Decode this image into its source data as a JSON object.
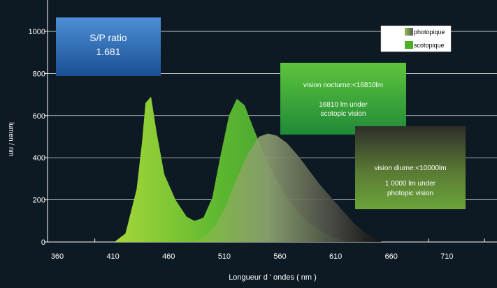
{
  "chart_data": {
    "type": "area",
    "xlabel": "Longueur d ' ondes ( nm )",
    "ylabel": "lumen / nm",
    "xlim": [
      360,
      760
    ],
    "ylim": [
      0,
      1000
    ],
    "x_ticks": [
      360,
      410,
      460,
      510,
      560,
      610,
      660,
      710
    ],
    "y_ticks": [
      0,
      200,
      400,
      600,
      800,
      1000
    ],
    "grid": true,
    "legend_position": "top-right",
    "series": [
      {
        "name": "scotopique",
        "color": "#4caf2a",
        "points": [
          [
            420,
            0
          ],
          [
            430,
            40
          ],
          [
            440,
            250
          ],
          [
            445,
            480
          ],
          [
            448,
            660
          ],
          [
            453,
            690
          ],
          [
            458,
            520
          ],
          [
            465,
            320
          ],
          [
            475,
            200
          ],
          [
            485,
            120
          ],
          [
            492,
            100
          ],
          [
            500,
            115
          ],
          [
            508,
            210
          ],
          [
            515,
            400
          ],
          [
            523,
            600
          ],
          [
            530,
            680
          ],
          [
            537,
            650
          ],
          [
            545,
            540
          ],
          [
            555,
            410
          ],
          [
            565,
            300
          ],
          [
            575,
            210
          ],
          [
            585,
            140
          ],
          [
            595,
            90
          ],
          [
            605,
            55
          ],
          [
            615,
            25
          ],
          [
            625,
            8
          ],
          [
            635,
            0
          ]
        ]
      },
      {
        "name": "photopique",
        "color": "#8a8a7a",
        "points": [
          [
            490,
            0
          ],
          [
            500,
            20
          ],
          [
            510,
            70
          ],
          [
            520,
            170
          ],
          [
            530,
            300
          ],
          [
            540,
            420
          ],
          [
            550,
            500
          ],
          [
            558,
            515
          ],
          [
            566,
            505
          ],
          [
            575,
            470
          ],
          [
            585,
            410
          ],
          [
            595,
            340
          ],
          [
            605,
            270
          ],
          [
            615,
            210
          ],
          [
            625,
            150
          ],
          [
            635,
            90
          ],
          [
            645,
            45
          ],
          [
            652,
            20
          ],
          [
            660,
            0
          ]
        ]
      }
    ],
    "annotations": {
      "sp_ratio": {
        "label": "S/P ratio",
        "value": "1.681"
      },
      "night": {
        "title": "vision nocturne:<16810lm",
        "line1": "16810 lm under",
        "line2": "scotopic vision"
      },
      "day": {
        "title": "vision diurne:<10000lm",
        "line1": "1 0000 lm under",
        "line2": "photopic vision"
      }
    }
  }
}
